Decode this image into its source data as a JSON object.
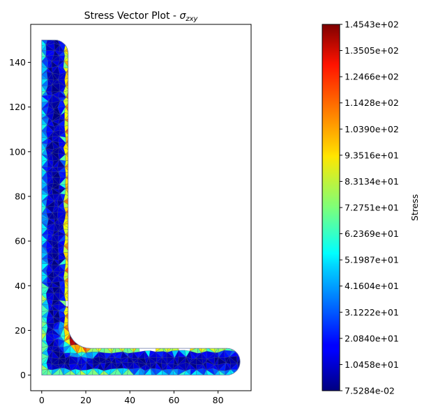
{
  "chart_data": {
    "type": "mesh-contour",
    "title": "Stress Vector Plot - ",
    "title_math": "σ",
    "title_sub": "zxy",
    "xlabel": "",
    "ylabel": "",
    "xlim": [
      -5,
      95
    ],
    "ylim": [
      -7,
      157
    ],
    "xticks": [
      0,
      20,
      40,
      60,
      80
    ],
    "yticks": [
      0,
      20,
      40,
      60,
      80,
      100,
      120,
      140
    ],
    "grid": false,
    "colormap": "jet",
    "geometry": {
      "shape": "L-section",
      "leg_vertical": {
        "x": [
          0,
          12
        ],
        "y": [
          0,
          150
        ]
      },
      "leg_horizontal": {
        "x": [
          0,
          90
        ],
        "y": [
          0,
          12
        ]
      },
      "fillet_radius": 10
    },
    "colorbar": {
      "label": "Stress",
      "min": 0.075284,
      "max": 145.43,
      "tick_labels": [
        "1.4543e+02",
        "1.3505e+02",
        "1.2466e+02",
        "1.1428e+02",
        "1.0390e+02",
        "9.3516e+01",
        "8.3134e+01",
        "7.2751e+01",
        "6.2369e+01",
        "5.1987e+01",
        "4.1604e+01",
        "3.1222e+01",
        "2.0840e+01",
        "1.0458e+01",
        "7.5284e-02"
      ]
    }
  }
}
